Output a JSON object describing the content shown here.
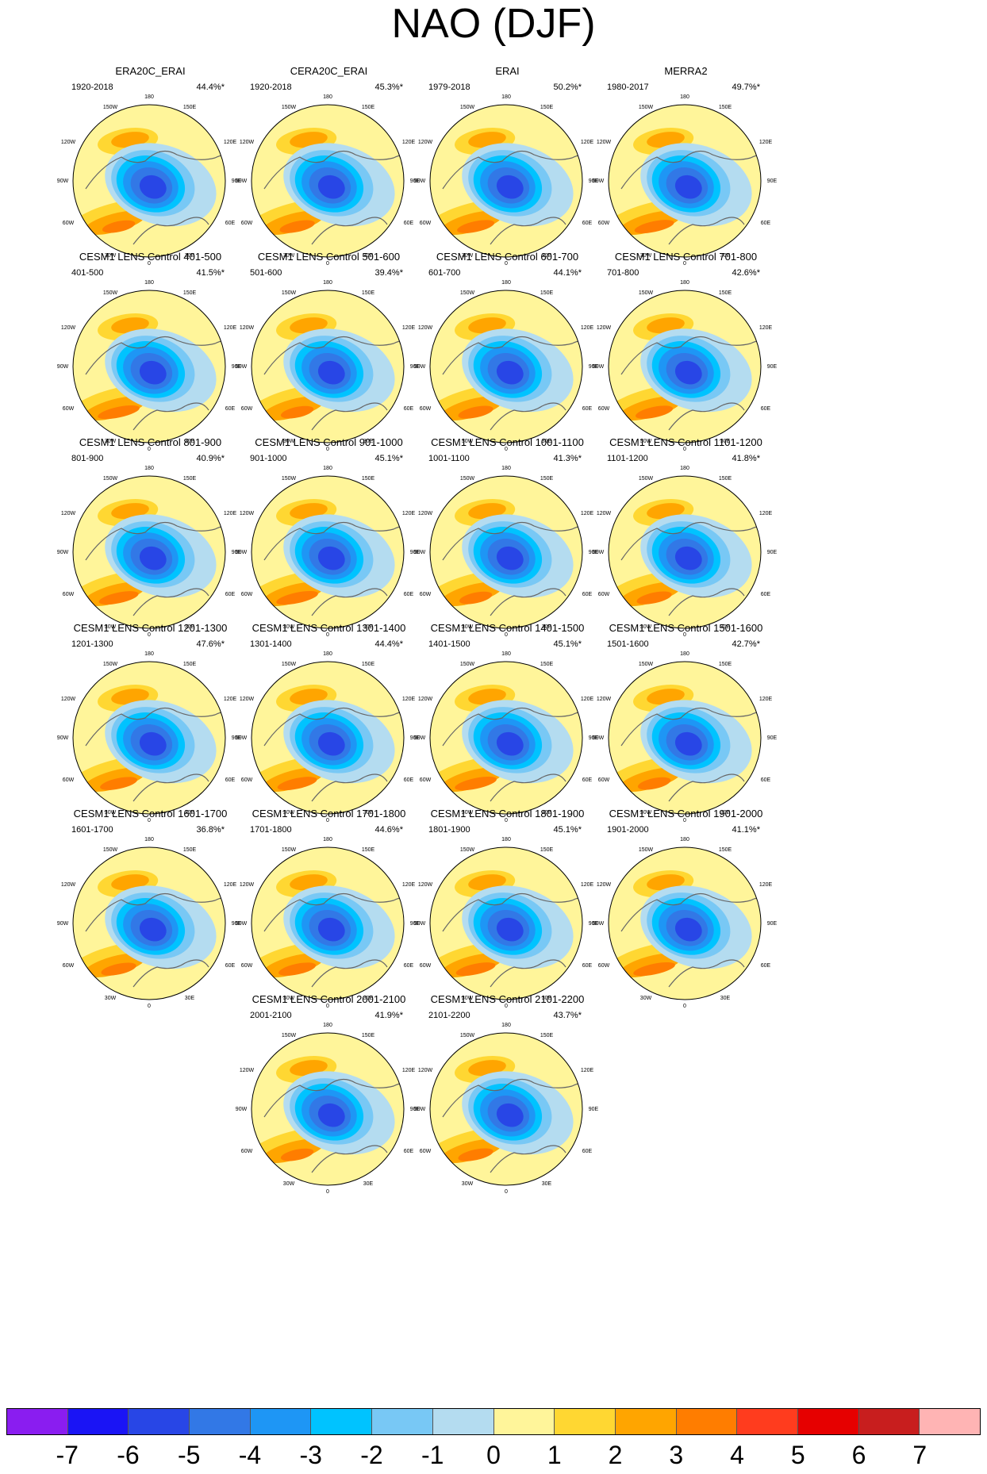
{
  "title": "NAO (DJF)",
  "longitude_labels": {
    "top": "180",
    "upper_left": "150W",
    "upper_right": "150E",
    "left_upper": "120W",
    "right_upper": "120E",
    "left": "90W",
    "right": "90E",
    "left_lower": "60W",
    "right_lower": "60E",
    "lower_left": "30W",
    "lower_right": "30E",
    "bottom": "0"
  },
  "panels": [
    {
      "title": "ERA20C_ERAI",
      "period": "1920-2018",
      "variance": "44.4%*"
    },
    {
      "title": "CERA20C_ERAI",
      "period": "1920-2018",
      "variance": "45.3%*"
    },
    {
      "title": "ERAI",
      "period": "1979-2018",
      "variance": "50.2%*"
    },
    {
      "title": "MERRA2",
      "period": "1980-2017",
      "variance": "49.7%*"
    },
    {
      "title": "CESM1 LENS Control 401-500",
      "period": "401-500",
      "variance": "41.5%*"
    },
    {
      "title": "CESM1 LENS Control 501-600",
      "period": "501-600",
      "variance": "39.4%*"
    },
    {
      "title": "CESM1 LENS Control 601-700",
      "period": "601-700",
      "variance": "44.1%*"
    },
    {
      "title": "CESM1 LENS Control 701-800",
      "period": "701-800",
      "variance": "42.6%*"
    },
    {
      "title": "CESM1 LENS Control 801-900",
      "period": "801-900",
      "variance": "40.9%*"
    },
    {
      "title": "CESM1 LENS Control 901-1000",
      "period": "901-1000",
      "variance": "45.1%*"
    },
    {
      "title": "CESM1 LENS Control 1001-1100",
      "period": "1001-1100",
      "variance": "41.3%*"
    },
    {
      "title": "CESM1 LENS Control 1101-1200",
      "period": "1101-1200",
      "variance": "41.8%*"
    },
    {
      "title": "CESM1 LENS Control 1201-1300",
      "period": "1201-1300",
      "variance": "47.6%*"
    },
    {
      "title": "CESM1 LENS Control 1301-1400",
      "period": "1301-1400",
      "variance": "44.4%*"
    },
    {
      "title": "CESM1 LENS Control 1401-1500",
      "period": "1401-1500",
      "variance": "45.1%*"
    },
    {
      "title": "CESM1 LENS Control 1501-1600",
      "period": "1501-1600",
      "variance": "42.7%*"
    },
    {
      "title": "CESM1 LENS Control 1601-1700",
      "period": "1601-1700",
      "variance": "36.8%*"
    },
    {
      "title": "CESM1 LENS Control 1701-1800",
      "period": "1701-1800",
      "variance": "44.6%*"
    },
    {
      "title": "CESM1 LENS Control 1801-1900",
      "period": "1801-1900",
      "variance": "45.1%*"
    },
    {
      "title": "CESM1 LENS Control 1901-2000",
      "period": "1901-2000",
      "variance": "41.1%*"
    },
    {
      "title": "CESM1 LENS Control 2001-2100",
      "period": "2001-2100",
      "variance": "41.9%*"
    },
    {
      "title": "CESM1 LENS Control 2101-2200",
      "period": "2101-2200",
      "variance": "43.7%*"
    }
  ],
  "colorbar": {
    "colors": [
      "#8a1df0",
      "#1a14f5",
      "#2846e6",
      "#3278e6",
      "#1e96f5",
      "#00c3ff",
      "#78c8f5",
      "#b4dcf0",
      "#fff59a",
      "#ffd732",
      "#ffa500",
      "#ff7d00",
      "#ff3c1e",
      "#e60000",
      "#c81e1e",
      "#ffb4b4"
    ],
    "labels": [
      "-7",
      "-6",
      "-5",
      "-4",
      "-3",
      "-2",
      "-1",
      "0",
      "1",
      "2",
      "3",
      "4",
      "5",
      "6",
      "7"
    ]
  }
}
